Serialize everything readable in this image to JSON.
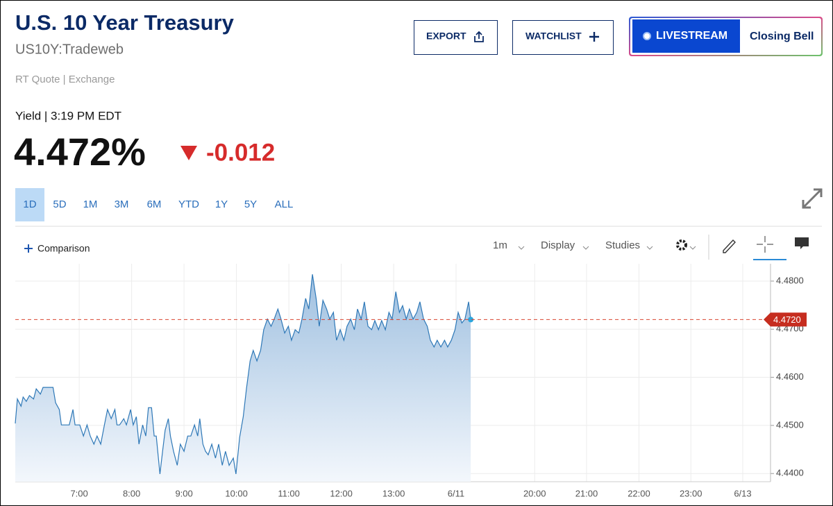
{
  "header": {
    "title": "U.S. 10 Year Treasury",
    "symbol": "US10Y:Tradeweb",
    "quote_source": "RT Quote | Exchange",
    "yield_label": "Yield | 3:19 PM EDT",
    "price": "4.472%",
    "change": "-0.012"
  },
  "buttons": {
    "export": "EXPORT",
    "watchlist": "WATCHLIST",
    "livestream": "LIVESTREAM",
    "closing_bell": "Closing Bell"
  },
  "ranges": [
    "1D",
    "5D",
    "1M",
    "3M",
    "6M",
    "YTD",
    "1Y",
    "5Y",
    "ALL"
  ],
  "toolbar": {
    "comparison": "Comparison",
    "interval": "1m",
    "display": "Display",
    "studies": "Studies"
  },
  "chart_data": {
    "type": "line",
    "color": "#2e78b7",
    "x": [
      5.78,
      5.82,
      5.89,
      5.93,
      5.99,
      6.05,
      6.13,
      6.18,
      6.26,
      6.31,
      6.42,
      6.5,
      6.55,
      6.62,
      6.66,
      6.75,
      6.81,
      6.88,
      6.92,
      7.01,
      7.08,
      7.15,
      7.21,
      7.28,
      7.34,
      7.41,
      7.48,
      7.54,
      7.61,
      7.68,
      7.72,
      7.77,
      7.85,
      7.9,
      7.98,
      8.03,
      8.09,
      8.14,
      8.21,
      8.27,
      8.32,
      8.38,
      8.43,
      8.47,
      8.54,
      8.59,
      8.64,
      8.7,
      8.74,
      8.8,
      8.87,
      8.93,
      9.0,
      9.07,
      9.13,
      9.2,
      9.26,
      9.3,
      9.36,
      9.41,
      9.46,
      9.53,
      9.6,
      9.66,
      9.73,
      9.79,
      9.86,
      9.94,
      9.99,
      10.06,
      10.13,
      10.19,
      10.26,
      10.32,
      10.39,
      10.46,
      10.52,
      10.59,
      10.66,
      10.72,
      10.79,
      10.85,
      10.92,
      10.99,
      11.05,
      11.12,
      11.19,
      11.25,
      11.32,
      11.38,
      11.45,
      11.52,
      11.58,
      11.65,
      11.72,
      11.78,
      11.85,
      11.91,
      11.98,
      12.05,
      12.11,
      12.18,
      12.25,
      12.31,
      12.38,
      12.44,
      12.51,
      12.58,
      12.64,
      12.71,
      12.77,
      12.84,
      12.91,
      12.97,
      13.04,
      13.11,
      13.17,
      13.24,
      13.3,
      13.37,
      13.44,
      13.5,
      13.57,
      13.64,
      13.7,
      13.77,
      13.83,
      13.9,
      13.97,
      14.03,
      14.1,
      14.17,
      14.23,
      14.3,
      14.36,
      14.43,
      14.47
    ],
    "values": [
      4.4504,
      4.4555,
      4.454,
      4.4559,
      4.455,
      4.4562,
      4.4555,
      4.4576,
      4.4565,
      4.4579,
      4.4579,
      4.4579,
      4.4547,
      4.4533,
      4.4501,
      4.4501,
      4.4501,
      4.4533,
      4.4501,
      4.4501,
      4.4478,
      4.4501,
      4.4478,
      4.4461,
      4.4478,
      4.4461,
      4.4501,
      4.4533,
      4.4514,
      4.4533,
      4.4501,
      4.4501,
      4.4514,
      4.4501,
      4.4533,
      4.4501,
      4.4518,
      4.4461,
      4.4501,
      4.4478,
      4.4537,
      4.4537,
      4.4478,
      4.4478,
      4.4399,
      4.4446,
      4.449,
      4.4514,
      4.4478,
      4.4446,
      4.4417,
      4.4461,
      4.4446,
      4.4478,
      4.4478,
      4.4501,
      4.4478,
      4.4514,
      4.4461,
      4.4446,
      4.4439,
      4.4461,
      4.4432,
      4.4461,
      4.4417,
      4.4446,
      4.4417,
      4.4432,
      4.4399,
      4.4475,
      4.4518,
      4.4576,
      4.4634,
      4.4656,
      4.4634,
      4.4656,
      4.4699,
      4.4721,
      4.4706,
      4.4721,
      4.4742,
      4.4721,
      4.4692,
      4.4706,
      4.4677,
      4.4699,
      4.4692,
      4.4721,
      4.4764,
      4.4742,
      4.4814,
      4.4764,
      4.4706,
      4.476,
      4.4742,
      4.4721,
      4.4735,
      4.4677,
      4.4699,
      4.4677,
      4.4706,
      4.4721,
      4.4699,
      4.4742,
      4.4721,
      4.4757,
      4.4706,
      4.4699,
      4.4718,
      4.4699,
      4.4718,
      4.4699,
      4.4735,
      4.4721,
      4.4778,
      4.4735,
      4.4749,
      4.4721,
      4.4742,
      4.4721,
      4.4735,
      4.4757,
      4.4721,
      4.4706,
      4.4677,
      4.4663,
      4.4677,
      4.4663,
      4.4677,
      4.4663,
      4.4677,
      4.4699,
      4.4735,
      4.4713,
      4.4721,
      4.4757,
      4.472
    ],
    "xlim": [
      5.78,
      20.19
    ],
    "xticks": [
      {
        "value": 7,
        "label": "7:00"
      },
      {
        "value": 8,
        "label": "8:00"
      },
      {
        "value": 9,
        "label": "9:00"
      },
      {
        "value": 10,
        "label": "10:00"
      },
      {
        "value": 11,
        "label": "11:00"
      },
      {
        "value": 12,
        "label": "12:00"
      },
      {
        "value": 13,
        "label": "13:00"
      },
      {
        "value": 14.19,
        "label": "6/11"
      },
      {
        "value": 15.69,
        "label": "20:00"
      },
      {
        "value": 16.68,
        "label": "21:00"
      },
      {
        "value": 17.68,
        "label": "22:00"
      },
      {
        "value": 18.67,
        "label": "23:00"
      },
      {
        "value": 19.66,
        "label": "6/13"
      }
    ],
    "ylim": [
      4.4383,
      4.4836
    ],
    "yticks": [
      {
        "value": 4.44,
        "label": "4.4400"
      },
      {
        "value": 4.45,
        "label": "4.4500"
      },
      {
        "value": 4.46,
        "label": "4.4600"
      },
      {
        "value": 4.47,
        "label": "4.4700"
      },
      {
        "value": 4.48,
        "label": "4.4800"
      }
    ],
    "grid": true,
    "price_line": {
      "value": 4.472,
      "label": "4.4720",
      "color": "#d9432f"
    }
  }
}
